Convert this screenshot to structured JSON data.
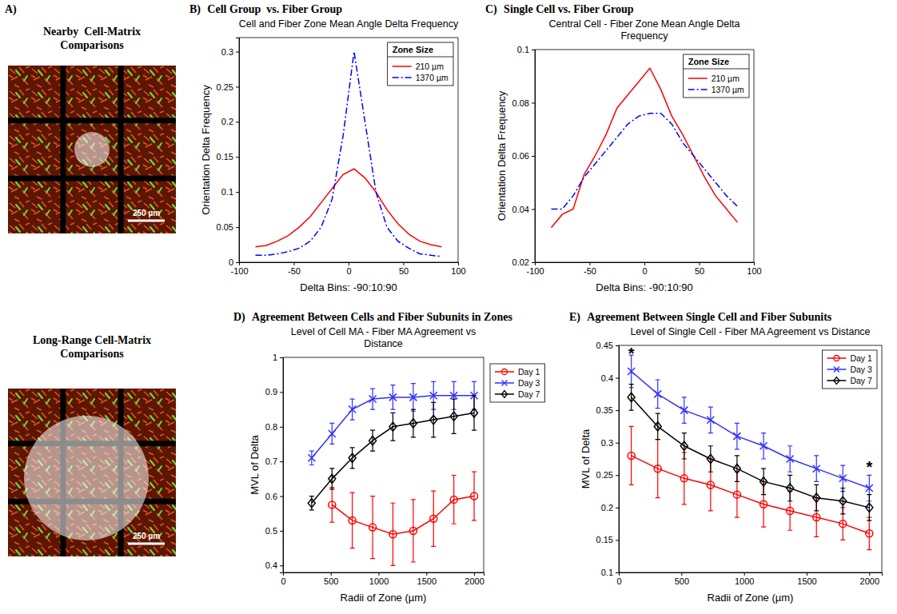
{
  "panel_a": {
    "label": "A)",
    "images": [
      {
        "title": "Nearby  Cell-Matrix Comparisons",
        "scale_bar": "250 µm"
      },
      {
        "title": "Long-Range Cell-Matrix Comparisons",
        "scale_bar": "250 µm"
      }
    ]
  },
  "chart_data": [
    {
      "type": "line",
      "panel_label": "B)",
      "heading": "Cell Group  vs. Fiber Group",
      "title": "Cell and Fiber Zone Mean Angle Delta Frequency",
      "x_label": "Delta Bins: -90:10:90",
      "y_label": "Orientation Delta Frequency",
      "legend_title": "Zone Size",
      "legend": "upper right",
      "x": [
        -85,
        -75,
        -65,
        -55,
        -45,
        -35,
        -25,
        -15,
        -5,
        5,
        15,
        25,
        35,
        45,
        55,
        65,
        75,
        85
      ],
      "xlim": [
        -100,
        100
      ],
      "xticks": [
        -100,
        -50,
        0,
        50,
        100
      ],
      "ylim": [
        0,
        0.32
      ],
      "yticks": [
        0,
        0.05,
        0.1,
        0.15,
        0.2,
        0.25,
        0.3
      ],
      "series": [
        {
          "name": "210 µm",
          "color": "#ff0000",
          "line_style": "solid",
          "values": [
            0.022,
            0.024,
            0.03,
            0.038,
            0.05,
            0.065,
            0.085,
            0.105,
            0.125,
            0.133,
            0.12,
            0.1,
            0.075,
            0.055,
            0.04,
            0.03,
            0.025,
            0.022
          ]
        },
        {
          "name": "1370 µm",
          "color": "#0000ff",
          "line_style": "dashdot",
          "values": [
            0.01,
            0.01,
            0.012,
            0.015,
            0.02,
            0.03,
            0.05,
            0.09,
            0.18,
            0.3,
            0.2,
            0.1,
            0.05,
            0.03,
            0.02,
            0.012,
            0.01,
            0.008
          ]
        }
      ]
    },
    {
      "type": "line",
      "panel_label": "C)",
      "heading": "Single Cell vs. Fiber Group",
      "title": "Central Cell - Fiber Zone Mean Angle Delta Frequency",
      "x_label": "Delta Bins: -90:10:90",
      "y_label": "Orientation Delta Frequency",
      "legend_title": "Zone Size",
      "legend": "upper right",
      "x": [
        -85,
        -75,
        -65,
        -55,
        -45,
        -35,
        -25,
        -15,
        -5,
        5,
        15,
        25,
        35,
        45,
        55,
        65,
        75,
        85
      ],
      "xlim": [
        -100,
        100
      ],
      "xticks": [
        -100,
        -50,
        0,
        50,
        100
      ],
      "ylim": [
        0.02,
        0.1
      ],
      "yticks": [
        0.02,
        0.04,
        0.06,
        0.08,
        0.1
      ],
      "series": [
        {
          "name": "210 µm",
          "color": "#ff0000",
          "line_style": "solid",
          "values": [
            0.033,
            0.038,
            0.04,
            0.053,
            0.06,
            0.068,
            0.078,
            0.083,
            0.088,
            0.093,
            0.085,
            0.075,
            0.068,
            0.06,
            0.052,
            0.045,
            0.04,
            0.035
          ]
        },
        {
          "name": "1370 µm",
          "color": "#0000ff",
          "line_style": "dashdot",
          "values": [
            0.04,
            0.04,
            0.045,
            0.052,
            0.057,
            0.062,
            0.067,
            0.072,
            0.075,
            0.076,
            0.076,
            0.072,
            0.065,
            0.06,
            0.055,
            0.05,
            0.045,
            0.041
          ]
        }
      ]
    },
    {
      "type": "line",
      "panel_label": "D)",
      "heading": "Agreement Between Cells and Fiber Subunits in Zones",
      "title": "Level of Cell MA - Fiber MA Agreement vs Distance",
      "x_label": "Radii of Zone (µm)",
      "y_label": "MVL of Delta",
      "legend": "right",
      "x": [
        300,
        513,
        725,
        938,
        1150,
        1363,
        1575,
        1788,
        2000
      ],
      "xlim": [
        0,
        2100
      ],
      "xticks": [
        0,
        500,
        1000,
        1500,
        2000
      ],
      "ylim": [
        0.38,
        1
      ],
      "yticks": [
        0.4,
        0.5,
        0.6,
        0.7,
        0.8,
        0.9,
        1
      ],
      "series": [
        {
          "name": "Day 1",
          "color": "#ff0000",
          "marker": "circle",
          "line_style": "solid",
          "values": [
            null,
            0.575,
            0.53,
            0.51,
            0.49,
            0.5,
            0.535,
            0.59,
            0.6
          ],
          "errors": [
            null,
            0.05,
            0.08,
            0.09,
            0.09,
            0.09,
            0.08,
            0.07,
            0.07
          ]
        },
        {
          "name": "Day 3",
          "color": "#3030ff",
          "marker": "x",
          "line_style": "solid",
          "values": [
            0.71,
            0.78,
            0.85,
            0.88,
            0.885,
            0.885,
            0.89,
            0.89,
            0.89
          ],
          "errors": [
            0.02,
            0.03,
            0.03,
            0.03,
            0.035,
            0.04,
            0.04,
            0.04,
            0.04
          ]
        },
        {
          "name": "Day 7",
          "color": "#000000",
          "marker": "diamond",
          "line_style": "solid",
          "values": [
            0.58,
            0.65,
            0.71,
            0.76,
            0.8,
            0.81,
            0.82,
            0.83,
            0.84
          ],
          "errors": [
            0.02,
            0.03,
            0.03,
            0.03,
            0.04,
            0.04,
            0.05,
            0.05,
            0.05
          ]
        }
      ]
    },
    {
      "type": "line",
      "panel_label": "E)",
      "heading": "Agreement Between Single Cell and Fiber Subunits",
      "title": "Level of Single Cell - Fiber MA Agreement vs Distance",
      "x_label": "Radii of Zone (µm)",
      "y_label": "MVL of Delta",
      "legend": "upper right",
      "x": [
        100,
        311,
        522,
        733,
        944,
        1156,
        1367,
        1578,
        1789,
        2000
      ],
      "xlim": [
        0,
        2100
      ],
      "xticks": [
        0,
        500,
        1000,
        1500,
        2000
      ],
      "ylim": [
        0.1,
        0.45
      ],
      "yticks": [
        0.1,
        0.15,
        0.2,
        0.25,
        0.3,
        0.35,
        0.4,
        0.45
      ],
      "annotations": [
        {
          "text": "*",
          "x": 100,
          "y": 0.44
        },
        {
          "text": "*",
          "x": 2000,
          "y": 0.265
        }
      ],
      "series": [
        {
          "name": "Day 1",
          "color": "#ff0000",
          "marker": "circle",
          "line_style": "solid",
          "values": [
            0.28,
            0.26,
            0.245,
            0.235,
            0.22,
            0.205,
            0.195,
            0.185,
            0.175,
            0.16
          ],
          "errors": [
            0.045,
            0.045,
            0.04,
            0.04,
            0.035,
            0.035,
            0.03,
            0.03,
            0.025,
            0.025
          ]
        },
        {
          "name": "Day 3",
          "color": "#3030ff",
          "marker": "x",
          "line_style": "solid",
          "values": [
            0.41,
            0.375,
            0.35,
            0.335,
            0.31,
            0.295,
            0.275,
            0.26,
            0.245,
            0.23
          ],
          "errors": [
            0.025,
            0.022,
            0.02,
            0.02,
            0.02,
            0.02,
            0.02,
            0.02,
            0.02,
            0.02
          ]
        },
        {
          "name": "Day 7",
          "color": "#000000",
          "marker": "diamond",
          "line_style": "solid",
          "values": [
            0.37,
            0.325,
            0.295,
            0.275,
            0.26,
            0.24,
            0.23,
            0.215,
            0.21,
            0.2
          ],
          "errors": [
            0.02,
            0.02,
            0.02,
            0.02,
            0.02,
            0.02,
            0.02,
            0.02,
            0.02,
            0.02
          ]
        }
      ]
    }
  ]
}
